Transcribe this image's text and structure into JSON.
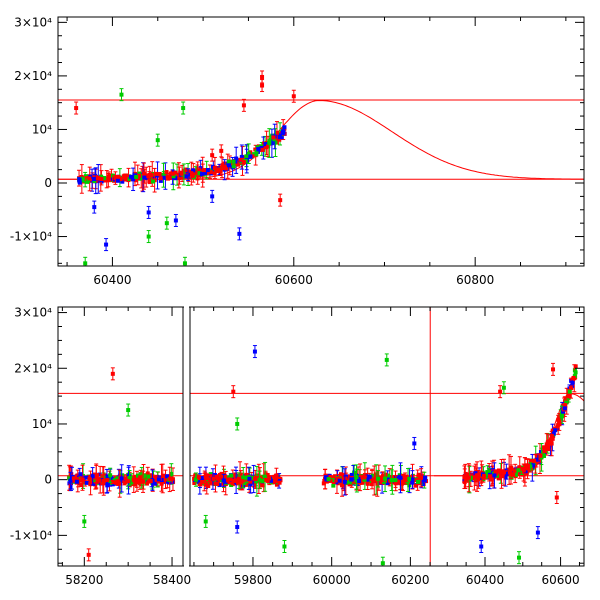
{
  "chart_data": [
    {
      "type": "scatter",
      "panel": "top",
      "xlim": [
        60340,
        60920
      ],
      "ylim": [
        -15500,
        31000
      ],
      "xticks": [
        {
          "value": 60400,
          "label": "60400"
        },
        {
          "value": 60600,
          "label": "60600"
        },
        {
          "value": 60800,
          "label": "60800"
        }
      ],
      "yticks": [
        {
          "value": -10000,
          "label": "-1×10⁴"
        },
        {
          "value": 0,
          "label": "0"
        },
        {
          "value": 10000,
          "label": "10⁴"
        },
        {
          "value": 20000,
          "label": "2×10⁴"
        },
        {
          "value": 30000,
          "label": "3×10⁴"
        }
      ],
      "hlines": [
        15500,
        700
      ],
      "model_curve": {
        "peak_x": 60628,
        "peak_y": 15400,
        "base_y": 700,
        "rise_width": 45,
        "fall_width": 80
      },
      "series": [
        {
          "color": "#ff0000",
          "points": [
            [
              60360,
              14000
            ],
            [
              60545,
              14500
            ],
            [
              60565,
              19800
            ],
            [
              60565,
              18200
            ],
            [
              60585,
              -3200
            ],
            [
              60600,
              16200
            ],
            [
              60510,
              5200
            ],
            [
              60520,
              6000
            ]
          ]
        },
        {
          "color": "#0000ff",
          "points": [
            [
              60393,
              -11500
            ],
            [
              60440,
              -5500
            ],
            [
              60540,
              -9500
            ],
            [
              60510,
              -2500
            ],
            [
              60380,
              -4500
            ],
            [
              60470,
              -7000
            ]
          ]
        },
        {
          "color": "#00cc00",
          "points": [
            [
              60410,
              16500
            ],
            [
              60478,
              14000
            ],
            [
              60460,
              -7500
            ],
            [
              60440,
              -10000
            ],
            [
              60370,
              -15000
            ],
            [
              60480,
              -15000
            ],
            [
              60450,
              8000
            ]
          ]
        }
      ]
    },
    {
      "type": "scatter",
      "panel": "bottom",
      "segments": [
        {
          "name": "seg1",
          "xlim": [
            58140,
            58425
          ],
          "xticks": [
            {
              "value": 58200,
              "label": "58200"
            },
            {
              "value": 58400,
              "label": "58400"
            }
          ]
        },
        {
          "name": "seg2",
          "xlim": [
            59640,
            60260
          ],
          "xticks": [
            {
              "value": 59800,
              "label": "59800"
            },
            {
              "value": 60000,
              "label": "60000"
            },
            {
              "value": 60200,
              "label": "60200"
            }
          ]
        },
        {
          "name": "seg3",
          "xlim": [
            60265,
            60662
          ],
          "xticks": [
            {
              "value": 60400,
              "label": "60400"
            },
            {
              "value": 60600,
              "label": "60600"
            }
          ]
        }
      ],
      "ylim": [
        -15500,
        31000
      ],
      "yticks": [
        {
          "value": -10000,
          "label": "-1×10⁴"
        },
        {
          "value": 0,
          "label": "0"
        },
        {
          "value": 10000,
          "label": "10⁴"
        },
        {
          "value": 20000,
          "label": "2×10⁴"
        },
        {
          "value": 30000,
          "label": "3×10⁴"
        }
      ],
      "hlines": [
        15500,
        700
      ],
      "vline": 60255,
      "outliers": [
        {
          "color": "#ff0000",
          "points": [
            [
              58265,
              19000
            ],
            [
              58210,
              -13500
            ],
            [
              59750,
              15800
            ],
            [
              60580,
              19800
            ],
            [
              60590,
              -3200
            ],
            [
              60440,
              15800
            ]
          ]
        },
        {
          "color": "#0000ff",
          "points": [
            [
              59805,
              23000
            ],
            [
              60210,
              6500
            ],
            [
              60390,
              -12000
            ],
            [
              60540,
              -9500
            ],
            [
              59760,
              -8500
            ]
          ]
        },
        {
          "color": "#00cc00",
          "points": [
            [
              58300,
              12500
            ],
            [
              60140,
              21500
            ],
            [
              59760,
              10000
            ],
            [
              60450,
              16500
            ],
            [
              60130,
              -15000
            ],
            [
              60490,
              -14000
            ],
            [
              58200,
              -7500
            ],
            [
              59680,
              -7500
            ],
            [
              59880,
              -12000
            ]
          ]
        }
      ]
    }
  ]
}
